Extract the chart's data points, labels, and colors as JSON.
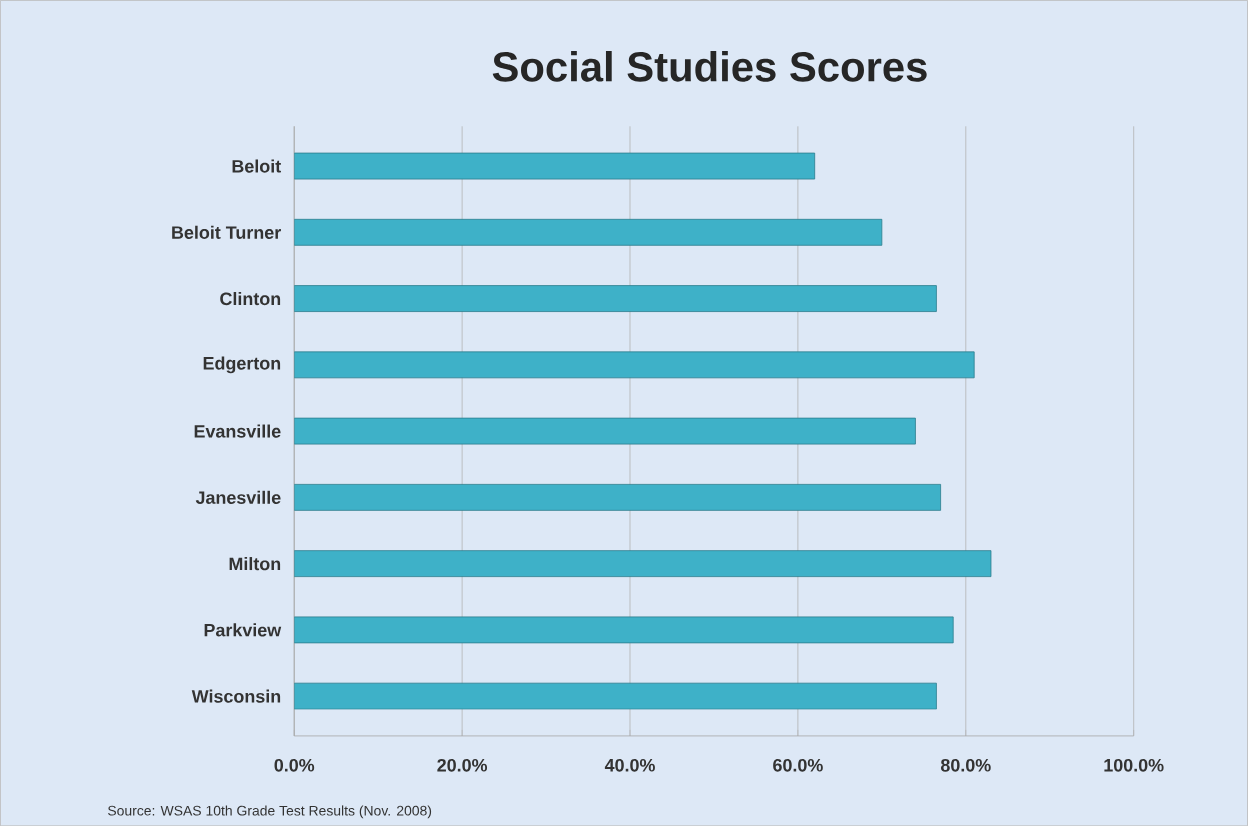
{
  "chart_data": {
    "type": "bar",
    "orientation": "horizontal",
    "title": "Social Studies Scores",
    "categories": [
      "Beloit",
      "Beloit Turner",
      "Clinton",
      "Edgerton",
      "Evansville",
      "Janesville",
      "Milton",
      "Parkview",
      "Wisconsin"
    ],
    "values": [
      62,
      70,
      76.5,
      81,
      74,
      77,
      83,
      78.5,
      76.5
    ],
    "color": "#3eb1c8",
    "xlim": [
      0,
      100
    ],
    "xticks": [
      {
        "value": 0,
        "label": "0.0%"
      },
      {
        "value": 20,
        "label": "20.0%"
      },
      {
        "value": 40,
        "label": "40.0%"
      },
      {
        "value": 60,
        "label": "60.0%"
      },
      {
        "value": 80,
        "label": "80.0%"
      },
      {
        "value": 100,
        "label": "100.0%"
      }
    ],
    "grid": "x",
    "annotations": [
      "Source: WSAS 10th Grade Test Results (Nov. 2008)"
    ]
  }
}
